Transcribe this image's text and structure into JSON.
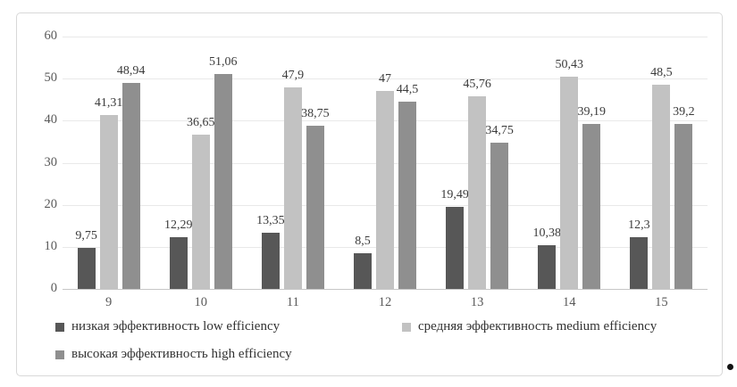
{
  "chart_data": {
    "type": "bar",
    "title": "",
    "xlabel": "",
    "ylabel": "",
    "categories": [
      "9",
      "10",
      "11",
      "12",
      "13",
      "14",
      "15"
    ],
    "series": [
      {
        "name": "низкая эффективность low efficiency",
        "color": "#575757",
        "values": [
          9.75,
          12.29,
          13.35,
          8.5,
          19.49,
          10.38,
          12.3
        ],
        "labels": [
          "9,75",
          "12,29",
          "13,35",
          "8,5",
          "19,49",
          "10,38",
          "12,3"
        ]
      },
      {
        "name": "средняя эффективность medium efficiency",
        "color": "#c2c2c2",
        "values": [
          41.31,
          36.65,
          47.9,
          47,
          45.76,
          50.43,
          48.5
        ],
        "labels": [
          "41,31",
          "36,65",
          "47,9",
          "47",
          "45,76",
          "50,43",
          "48,5"
        ]
      },
      {
        "name": "высокая эффективность high efficiency",
        "color": "#8f8f8f",
        "values": [
          48.94,
          51.06,
          38.75,
          44.5,
          34.75,
          39.19,
          39.2
        ],
        "labels": [
          "48,94",
          "51,06",
          "38,75",
          "44,5",
          "34,75",
          "39,19",
          "39,2"
        ]
      }
    ],
    "ylim": [
      0,
      60
    ],
    "yticks": [
      0,
      10,
      20,
      30,
      40,
      50,
      60
    ],
    "grid": true,
    "legend_position": "bottom"
  },
  "colors": {
    "frame_border": "#d8d8d8",
    "gridline": "#e9e9e9",
    "axis_line": "#c6c6c6",
    "tick_text": "#595959",
    "value_text": "#3b3b3b",
    "legend_text": "#333333"
  }
}
